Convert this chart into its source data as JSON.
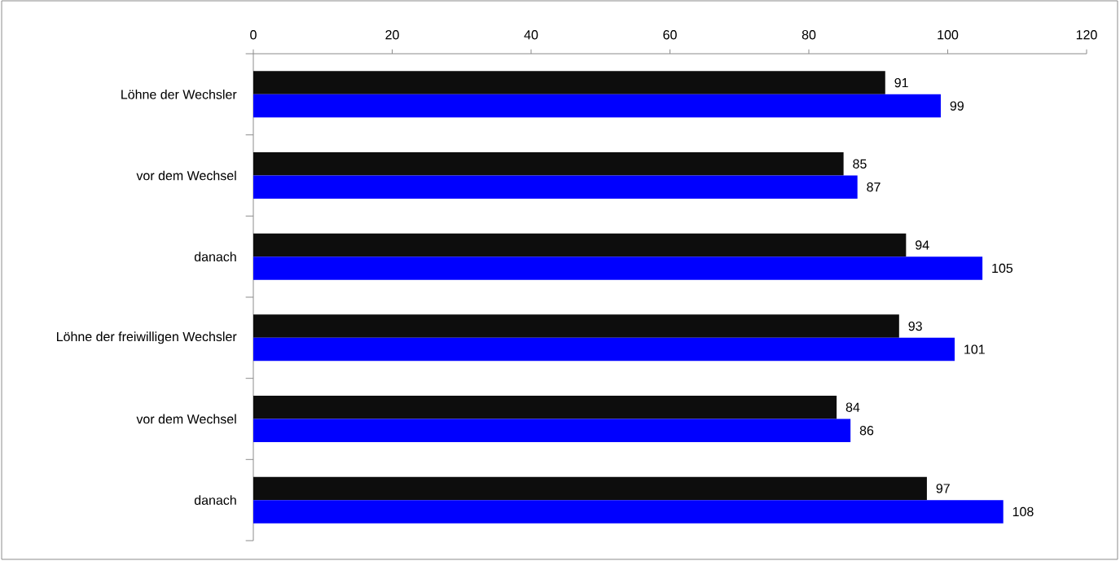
{
  "chart_data": {
    "type": "bar",
    "orientation": "horizontal",
    "categories": [
      "Löhne der Wechsler",
      "vor dem Wechsel",
      "danach",
      "Löhne der freiwilligen Wechsler",
      "vor dem Wechsel",
      "danach"
    ],
    "series": [
      {
        "color": "#0d0d0d",
        "values": [
          91,
          85,
          94,
          93,
          84,
          97
        ]
      },
      {
        "color": "#0000ff",
        "values": [
          99,
          87,
          105,
          101,
          86,
          108
        ]
      }
    ],
    "xlim": [
      0,
      120
    ],
    "xticks": [
      0,
      20,
      40,
      60,
      80,
      100,
      120
    ],
    "data_labels": true
  }
}
